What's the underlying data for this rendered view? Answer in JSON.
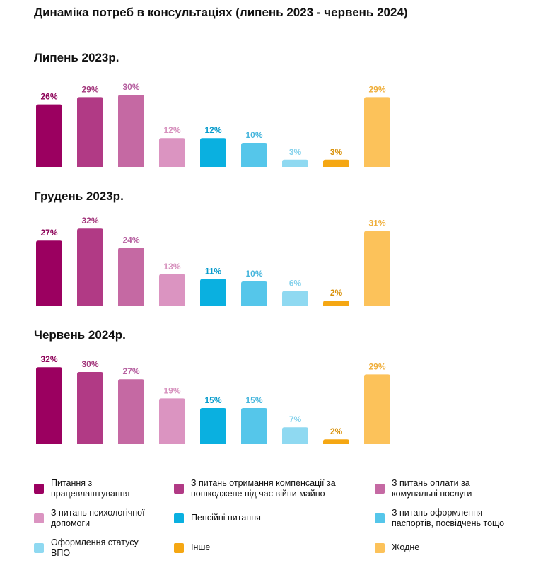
{
  "title": "Динаміка потреб в консультаціях (липень 2023 - червень 2024)",
  "chart_data": {
    "type": "bar",
    "categories": [
      "Питання з працевлаштування",
      "З питань отримання компенсації за пошкоджене під час війни майно",
      "З питань оплати за комунальні послуги",
      "З питань психологічної допомоги",
      "Пенсійні питання",
      "З питань оформлення паспортів, посвідчень тощо",
      "Оформлення статусу ВПО",
      "Інше",
      "Жодне"
    ],
    "colors": [
      "#9b0060",
      "#b13a85",
      "#c569a3",
      "#db94c1",
      "#0ab0e0",
      "#55c6ea",
      "#8fd9f1",
      "#f5a713",
      "#fcc25a"
    ],
    "label_colors": [
      "#8c0057",
      "#a3377c",
      "#b660a0",
      "#d690bd",
      "#0a9ccc",
      "#45b5dc",
      "#86d2ec",
      "#d99109",
      "#efae3a"
    ],
    "ylim": [
      0,
      32
    ],
    "panels": [
      {
        "title": "Липень 2023р.",
        "values": [
          26,
          29,
          30,
          12,
          12,
          10,
          3,
          3,
          29
        ],
        "labels": [
          "26%",
          "29%",
          "30%",
          "12%",
          "12%",
          "10%",
          "3%",
          "3%",
          "29%"
        ]
      },
      {
        "title": "Грудень 2023р.",
        "values": [
          27,
          32,
          24,
          13,
          11,
          10,
          6,
          2,
          31
        ],
        "labels": [
          "27%",
          "32%",
          "24%",
          "13%",
          "11%",
          "10%",
          "6%",
          "2%",
          "31%"
        ]
      },
      {
        "title": "Червень 2024р.",
        "values": [
          32,
          30,
          27,
          19,
          15,
          15,
          7,
          2,
          29
        ],
        "labels": [
          "32%",
          "30%",
          "27%",
          "19%",
          "15%",
          "15%",
          "7%",
          "2%",
          "29%"
        ]
      }
    ],
    "legend": [
      {
        "label": "Питання з\nпрацевлаштування",
        "color": "#9b0060"
      },
      {
        "label": "З питань отримання компенсації за\nпошкоджене під час війни майно",
        "color": "#b13a85"
      },
      {
        "label": "З питань оплати за\nкомунальні послуги",
        "color": "#c569a3"
      },
      {
        "label": "З питань психологічної\nдопомоги",
        "color": "#db94c1"
      },
      {
        "label": "Пенсійні питання",
        "color": "#0ab0e0"
      },
      {
        "label": "З питань оформлення\nпаспортів, посвідчень тощо",
        "color": "#55c6ea"
      },
      {
        "label": "Оформлення статусу\nВПО",
        "color": "#8fd9f1"
      },
      {
        "label": "Інше",
        "color": "#f5a713"
      },
      {
        "label": "Жодне",
        "color": "#fcc25a"
      }
    ]
  }
}
